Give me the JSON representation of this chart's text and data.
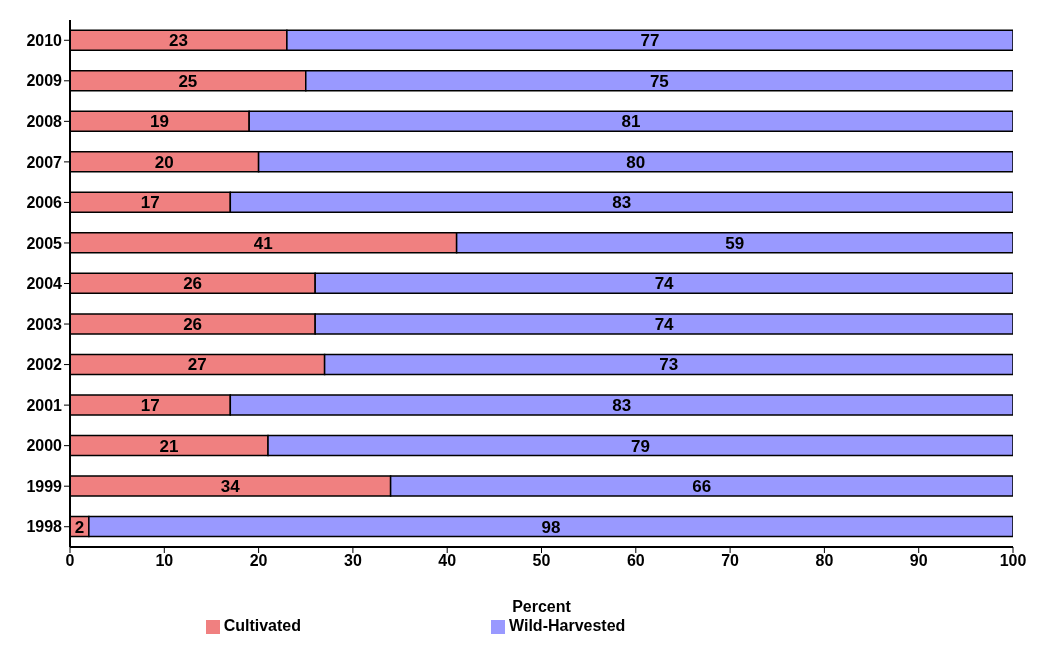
{
  "chart_data": {
    "type": "bar",
    "orientation": "horizontal",
    "stacked": true,
    "xlabel": "Percent",
    "categories": [
      "2010",
      "2009",
      "2008",
      "2007",
      "2006",
      "2005",
      "2004",
      "2003",
      "2002",
      "2001",
      "2000",
      "1999",
      "1998"
    ],
    "series": [
      {
        "name": "Cultivated",
        "color": "#f08080",
        "values": [
          23,
          25,
          19,
          20,
          17,
          41,
          26,
          26,
          27,
          17,
          21,
          34,
          2
        ]
      },
      {
        "name": "Wild-Harvested",
        "color": "#9999ff",
        "values": [
          77,
          75,
          81,
          80,
          83,
          59,
          74,
          74,
          73,
          83,
          79,
          66,
          98
        ]
      }
    ],
    "xlim": [
      0,
      100
    ],
    "xticks": [
      0,
      10,
      20,
      30,
      40,
      50,
      60,
      70,
      80,
      90,
      100
    ],
    "data_labels": true,
    "legend": "bottom",
    "grid": false
  }
}
